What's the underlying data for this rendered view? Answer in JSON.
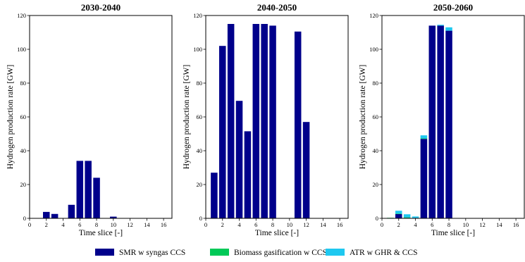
{
  "colors": {
    "smr": "#00008b",
    "biomass": "#00c957",
    "atr": "#1ec8f0"
  },
  "legend": [
    {
      "key": "smr",
      "label": "SMR w syngas CCS"
    },
    {
      "key": "biomass",
      "label": "Biomass gasification w CCS"
    },
    {
      "key": "atr",
      "label": "ATR w GHR & CCS"
    }
  ],
  "chart_data": [
    {
      "type": "bar",
      "stacked": true,
      "title": "2030-2040",
      "xlabel": "Time slice [-]",
      "ylabel": "Hydrogen production rate [GW]",
      "xlim": [
        0,
        17
      ],
      "ylim": [
        0,
        120
      ],
      "xticks": [
        0,
        2,
        4,
        6,
        8,
        10,
        12,
        14,
        16
      ],
      "yticks": [
        0,
        20,
        40,
        60,
        80,
        100,
        120
      ],
      "x": [
        1,
        2,
        3,
        4,
        5,
        6,
        7,
        8,
        9,
        10,
        11,
        12,
        13,
        14,
        15,
        16
      ],
      "series": [
        {
          "key": "smr",
          "name": "SMR w syngas CCS",
          "values": [
            0,
            3.8,
            2.6,
            0,
            8,
            34,
            34,
            24,
            0,
            1,
            0,
            0,
            0,
            0,
            0,
            0
          ]
        },
        {
          "key": "biomass",
          "name": "Biomass gasification w CCS",
          "values": [
            0,
            0,
            0,
            0,
            0,
            0,
            0,
            0,
            0,
            0,
            0,
            0,
            0,
            0,
            0,
            0
          ]
        },
        {
          "key": "atr",
          "name": "ATR w GHR & CCS",
          "values": [
            0,
            0,
            0,
            0,
            0,
            0,
            0,
            0,
            0,
            0,
            0,
            0,
            0,
            0,
            0,
            0
          ]
        }
      ]
    },
    {
      "type": "bar",
      "stacked": true,
      "title": "2040-2050",
      "xlabel": "Time slice [-]",
      "ylabel": "Hydrogen production rate [GW]",
      "xlim": [
        0,
        17
      ],
      "ylim": [
        0,
        120
      ],
      "xticks": [
        0,
        2,
        4,
        6,
        8,
        10,
        12,
        14,
        16
      ],
      "yticks": [
        0,
        20,
        40,
        60,
        80,
        100,
        120
      ],
      "x": [
        1,
        2,
        3,
        4,
        5,
        6,
        7,
        8,
        9,
        10,
        11,
        12,
        13,
        14,
        15,
        16
      ],
      "series": [
        {
          "key": "smr",
          "name": "SMR w syngas CCS",
          "values": [
            27,
            102,
            115,
            69.5,
            51.5,
            115,
            115,
            114,
            0,
            0,
            110.5,
            57,
            0,
            0,
            0,
            0
          ]
        },
        {
          "key": "biomass",
          "name": "Biomass gasification w CCS",
          "values": [
            0,
            0,
            0,
            0,
            0,
            0,
            0,
            0,
            0,
            0,
            0,
            0,
            0,
            0,
            0,
            0
          ]
        },
        {
          "key": "atr",
          "name": "ATR w GHR & CCS",
          "values": [
            0,
            0,
            0,
            0,
            0,
            0,
            0,
            0,
            0,
            0,
            0,
            0,
            0,
            0,
            0,
            0
          ]
        }
      ]
    },
    {
      "type": "bar",
      "stacked": true,
      "title": "2050-2060",
      "xlabel": "Time slice [-]",
      "ylabel": "Hydrogen production rate [GW]",
      "xlim": [
        0,
        17
      ],
      "ylim": [
        0,
        120
      ],
      "xticks": [
        0,
        2,
        4,
        6,
        8,
        10,
        12,
        14,
        16
      ],
      "yticks": [
        0,
        20,
        40,
        60,
        80,
        100,
        120
      ],
      "x": [
        1,
        2,
        3,
        4,
        5,
        6,
        7,
        8,
        9,
        10,
        11,
        12,
        13,
        14,
        15,
        16
      ],
      "series": [
        {
          "key": "smr",
          "name": "SMR w syngas CCS",
          "values": [
            0,
            2.5,
            0.3,
            0.3,
            47,
            114,
            114,
            111,
            0,
            0,
            0,
            0,
            0,
            0,
            0,
            0
          ]
        },
        {
          "key": "biomass",
          "name": "Biomass gasification w CCS",
          "values": [
            0.3,
            0.3,
            0.3,
            0,
            0.3,
            0,
            0,
            0,
            0,
            0,
            0,
            0,
            0,
            0,
            0,
            0
          ]
        },
        {
          "key": "atr",
          "name": "ATR w GHR & CCS",
          "values": [
            0,
            1.7,
            1.8,
            0.8,
            1.8,
            0,
            0.5,
            2,
            0,
            0,
            0,
            0,
            0,
            0,
            0,
            0
          ]
        }
      ]
    }
  ]
}
